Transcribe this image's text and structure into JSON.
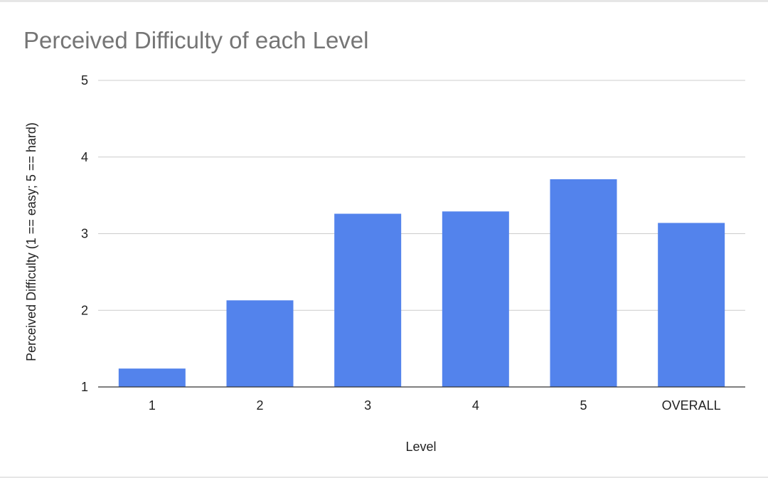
{
  "chart_data": {
    "type": "bar",
    "title": "Perceived Difficulty of each Level",
    "xlabel": "Level",
    "ylabel": "Perceived Difficulty (1 == easy; 5 == hard)",
    "categories": [
      "1",
      "2",
      "3",
      "4",
      "5",
      "OVERALL"
    ],
    "values": [
      1.24,
      2.13,
      3.26,
      3.29,
      3.71,
      3.14
    ],
    "ylim": [
      1,
      5
    ],
    "yticks": [
      "1",
      "2",
      "3",
      "4",
      "5"
    ],
    "grid": true,
    "legend": "none",
    "bar_color": "#5383ec"
  }
}
